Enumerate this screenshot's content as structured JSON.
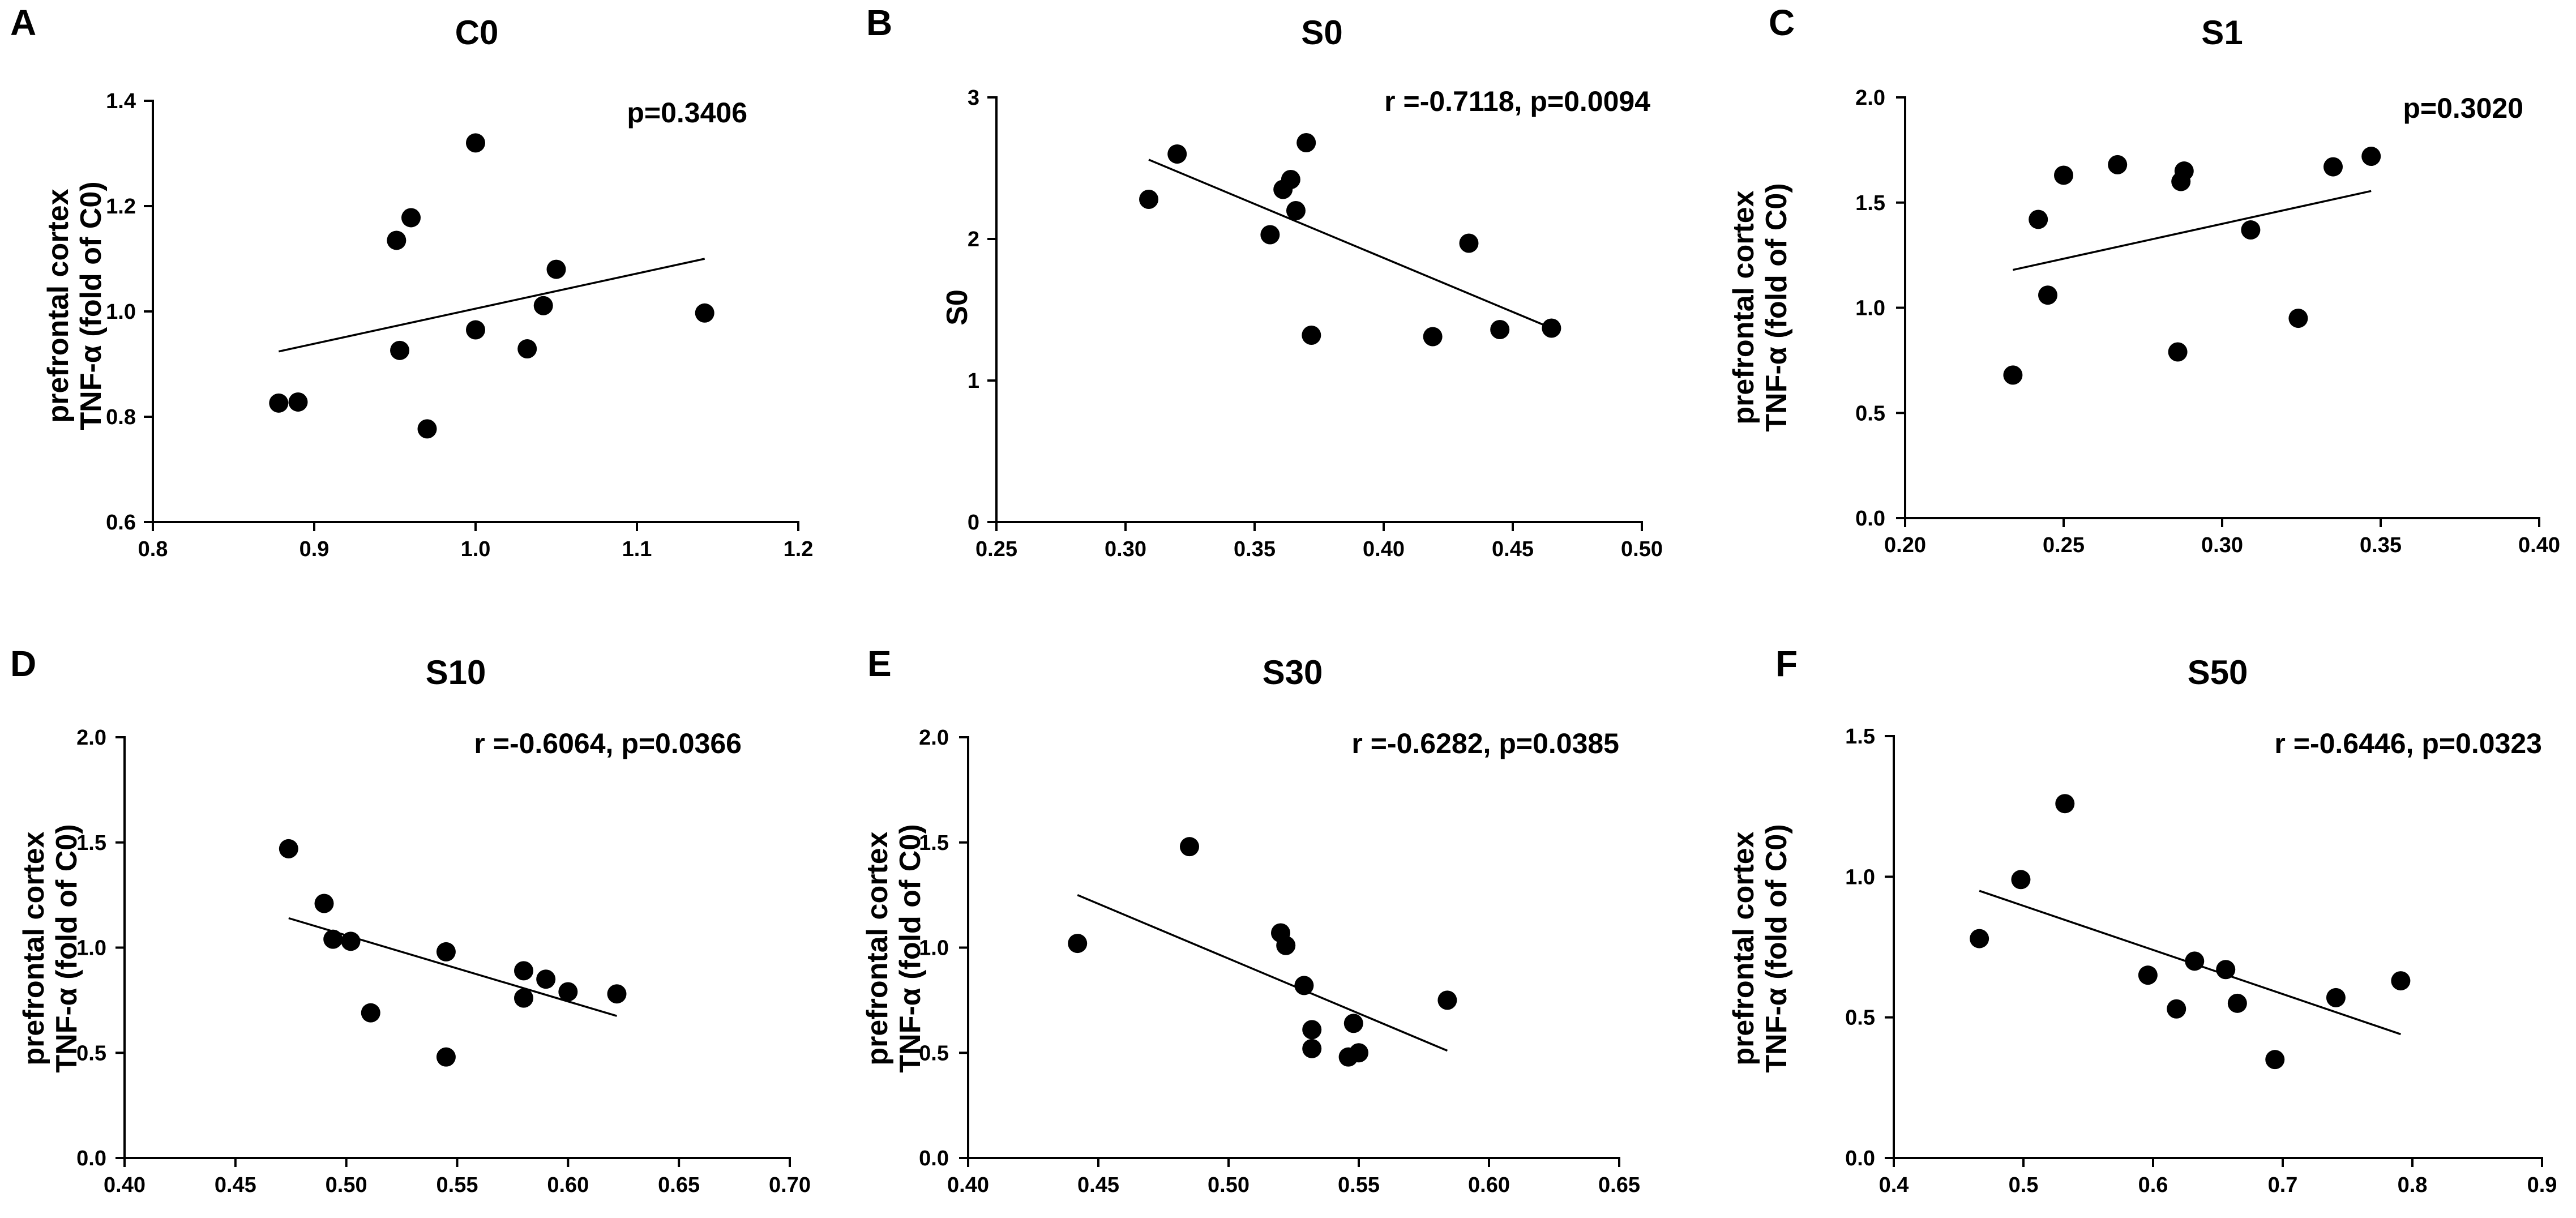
{
  "figure": {
    "description": "Six scatter panels with linear regression lines"
  },
  "chart_data": [
    {
      "type": "scatter",
      "panel": "A",
      "title": "C0",
      "xlabel": "",
      "ylabel_lines": [
        "prefrontal cortex",
        "TNF-α (fold of C0)"
      ],
      "stat": "p=0.3406",
      "xlim": [
        0.8,
        1.2
      ],
      "ylim": [
        0.6,
        1.4
      ],
      "xticks": [
        0.8,
        0.9,
        1.0,
        1.1,
        1.2
      ],
      "yticks": [
        0.6,
        0.8,
        1.0,
        1.2,
        1.4
      ],
      "x_decimals": 1,
      "y_decimals": 1,
      "points": [
        {
          "x": 0.878,
          "y": 0.826
        },
        {
          "x": 0.89,
          "y": 0.828
        },
        {
          "x": 0.951,
          "y": 1.135
        },
        {
          "x": 0.953,
          "y": 0.926
        },
        {
          "x": 0.96,
          "y": 1.178
        },
        {
          "x": 0.97,
          "y": 0.777
        },
        {
          "x": 1.0,
          "y": 1.32
        },
        {
          "x": 1.0,
          "y": 0.965
        },
        {
          "x": 1.032,
          "y": 0.929
        },
        {
          "x": 1.042,
          "y": 1.011
        },
        {
          "x": 1.05,
          "y": 1.08
        },
        {
          "x": 1.142,
          "y": 0.997
        }
      ],
      "regression": {
        "x": [
          0.878,
          1.142
        ],
        "y": [
          0.924,
          1.1
        ]
      }
    },
    {
      "type": "scatter",
      "panel": "B",
      "title": "S0",
      "xlabel": "",
      "ylabel_lines": [
        "S0"
      ],
      "stat": "r =-0.7118, p=0.0094",
      "xlim": [
        0.25,
        0.5
      ],
      "ylim": [
        0,
        3
      ],
      "xticks": [
        0.25,
        0.3,
        0.35,
        0.4,
        0.45,
        0.5
      ],
      "yticks": [
        0,
        1,
        2,
        3
      ],
      "x_decimals": 2,
      "y_decimals": 0,
      "points": [
        {
          "x": 0.309,
          "y": 2.28
        },
        {
          "x": 0.32,
          "y": 2.6
        },
        {
          "x": 0.356,
          "y": 2.03
        },
        {
          "x": 0.361,
          "y": 2.35
        },
        {
          "x": 0.364,
          "y": 2.42
        },
        {
          "x": 0.366,
          "y": 2.2
        },
        {
          "x": 0.37,
          "y": 2.68
        },
        {
          "x": 0.372,
          "y": 1.32
        },
        {
          "x": 0.419,
          "y": 1.31
        },
        {
          "x": 0.433,
          "y": 1.97
        },
        {
          "x": 0.445,
          "y": 1.36
        },
        {
          "x": 0.465,
          "y": 1.37
        }
      ],
      "regression": {
        "x": [
          0.309,
          0.465
        ],
        "y": [
          2.56,
          1.37
        ]
      }
    },
    {
      "type": "scatter",
      "panel": "C",
      "title": "S1",
      "xlabel": "",
      "ylabel_lines": [
        "prefrontal cortex",
        "TNF-α (fold of C0)"
      ],
      "stat": "p=0.3020",
      "xlim": [
        0.2,
        0.4
      ],
      "ylim": [
        0,
        2.0
      ],
      "xticks": [
        0.2,
        0.25,
        0.3,
        0.35,
        0.4
      ],
      "yticks": [
        0,
        0.5,
        1.0,
        1.5,
        2.0
      ],
      "x_decimals": 2,
      "y_decimals": 1,
      "points": [
        {
          "x": 0.234,
          "y": 0.68
        },
        {
          "x": 0.242,
          "y": 1.42
        },
        {
          "x": 0.245,
          "y": 1.06
        },
        {
          "x": 0.25,
          "y": 1.63
        },
        {
          "x": 0.267,
          "y": 1.68
        },
        {
          "x": 0.286,
          "y": 0.79
        },
        {
          "x": 0.287,
          "y": 1.6
        },
        {
          "x": 0.288,
          "y": 1.65
        },
        {
          "x": 0.309,
          "y": 1.37
        },
        {
          "x": 0.324,
          "y": 0.95
        },
        {
          "x": 0.335,
          "y": 1.67
        },
        {
          "x": 0.347,
          "y": 1.72
        }
      ],
      "regression": {
        "x": [
          0.234,
          0.347
        ],
        "y": [
          1.18,
          1.555
        ]
      }
    },
    {
      "type": "scatter",
      "panel": "D",
      "title": "S10",
      "xlabel": "",
      "ylabel_lines": [
        "prefrontal cortex",
        "TNF-α (fold of C0)"
      ],
      "stat": "r =-0.6064, p=0.0366",
      "xlim": [
        0.4,
        0.7
      ],
      "ylim": [
        0,
        2.0
      ],
      "xticks": [
        0.4,
        0.45,
        0.5,
        0.55,
        0.6,
        0.65,
        0.7
      ],
      "yticks": [
        0,
        0.5,
        1.0,
        1.5,
        2.0
      ],
      "x_decimals": 2,
      "y_decimals": 1,
      "points": [
        {
          "x": 0.474,
          "y": 1.47
        },
        {
          "x": 0.49,
          "y": 1.21
        },
        {
          "x": 0.494,
          "y": 1.04
        },
        {
          "x": 0.502,
          "y": 1.03
        },
        {
          "x": 0.511,
          "y": 0.69
        },
        {
          "x": 0.545,
          "y": 0.98
        },
        {
          "x": 0.545,
          "y": 0.48
        },
        {
          "x": 0.58,
          "y": 0.89
        },
        {
          "x": 0.58,
          "y": 0.76
        },
        {
          "x": 0.59,
          "y": 0.85
        },
        {
          "x": 0.6,
          "y": 0.79
        },
        {
          "x": 0.622,
          "y": 0.78
        }
      ],
      "regression": {
        "x": [
          0.474,
          0.622
        ],
        "y": [
          1.14,
          0.675
        ]
      }
    },
    {
      "type": "scatter",
      "panel": "E",
      "title": "S30",
      "xlabel": "",
      "ylabel_lines": [
        "prefrontal cortex",
        "TNF-α (fold of C0)"
      ],
      "stat": "r =-0.6282, p=0.0385",
      "xlim": [
        0.4,
        0.65
      ],
      "ylim": [
        0,
        2.0
      ],
      "xticks": [
        0.4,
        0.45,
        0.5,
        0.55,
        0.6,
        0.65
      ],
      "yticks": [
        0,
        0.5,
        1.0,
        1.5,
        2.0
      ],
      "x_decimals": 2,
      "y_decimals": 1,
      "points": [
        {
          "x": 0.442,
          "y": 1.02
        },
        {
          "x": 0.485,
          "y": 1.48
        },
        {
          "x": 0.52,
          "y": 1.07
        },
        {
          "x": 0.522,
          "y": 1.01
        },
        {
          "x": 0.529,
          "y": 0.82
        },
        {
          "x": 0.532,
          "y": 0.61
        },
        {
          "x": 0.532,
          "y": 0.52
        },
        {
          "x": 0.546,
          "y": 0.48
        },
        {
          "x": 0.548,
          "y": 0.64
        },
        {
          "x": 0.55,
          "y": 0.5
        },
        {
          "x": 0.584,
          "y": 0.75
        }
      ],
      "regression": {
        "x": [
          0.442,
          0.584
        ],
        "y": [
          1.25,
          0.51
        ]
      }
    },
    {
      "type": "scatter",
      "panel": "F",
      "title": "S50",
      "xlabel": "",
      "ylabel_lines": [
        "prefrontal cortex",
        "TNF-α (fold of C0)"
      ],
      "stat": "r =-0.6446, p=0.0323",
      "xlim": [
        0.4,
        0.9
      ],
      "ylim": [
        0,
        1.5
      ],
      "xticks": [
        0.4,
        0.5,
        0.6,
        0.7,
        0.8,
        0.9
      ],
      "yticks": [
        0,
        0.5,
        1.0,
        1.5
      ],
      "x_decimals": 1,
      "y_decimals": 1,
      "points": [
        {
          "x": 0.466,
          "y": 0.78
        },
        {
          "x": 0.498,
          "y": 0.99
        },
        {
          "x": 0.532,
          "y": 1.26
        },
        {
          "x": 0.596,
          "y": 0.65
        },
        {
          "x": 0.618,
          "y": 0.53
        },
        {
          "x": 0.632,
          "y": 0.7
        },
        {
          "x": 0.656,
          "y": 0.67
        },
        {
          "x": 0.665,
          "y": 0.55
        },
        {
          "x": 0.694,
          "y": 0.35
        },
        {
          "x": 0.741,
          "y": 0.57
        },
        {
          "x": 0.791,
          "y": 0.63
        }
      ],
      "regression": {
        "x": [
          0.466,
          0.791
        ],
        "y": [
          0.95,
          0.44
        ]
      }
    }
  ]
}
